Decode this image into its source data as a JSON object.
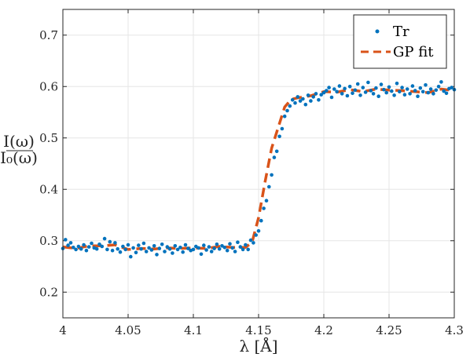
{
  "chart_data": {
    "type": "scatter",
    "title": "",
    "xlabel": "λ [Å]",
    "ylabel_numerator": "I(ω)",
    "ylabel_denominator": "I₀(ω)",
    "xlim": [
      4.0,
      4.3
    ],
    "ylim": [
      0.15,
      0.75
    ],
    "xticks": [
      4.0,
      4.05,
      4.1,
      4.15,
      4.2,
      4.25,
      4.3
    ],
    "xtick_labels": [
      "4",
      "4.05",
      "4.1",
      "4.15",
      "4.2",
      "4.25",
      "4.3"
    ],
    "yticks": [
      0.2,
      0.3,
      0.4,
      0.5,
      0.6,
      0.7
    ],
    "ytick_labels": [
      "0.2",
      "0.3",
      "0.4",
      "0.5",
      "0.6",
      "0.7"
    ],
    "grid": true,
    "legend_position": "top-right",
    "colors": {
      "data": "#0072BD",
      "fit": "#D95319"
    },
    "series": [
      {
        "name": "Tr",
        "style": "markers",
        "x": [
          4.0,
          4.002,
          4.004,
          4.006,
          4.008,
          4.01,
          4.012,
          4.014,
          4.016,
          4.018,
          4.02,
          4.022,
          4.024,
          4.026,
          4.028,
          4.03,
          4.032,
          4.034,
          4.036,
          4.038,
          4.04,
          4.042,
          4.044,
          4.046,
          4.048,
          4.05,
          4.052,
          4.054,
          4.056,
          4.058,
          4.06,
          4.062,
          4.064,
          4.066,
          4.068,
          4.07,
          4.072,
          4.074,
          4.076,
          4.078,
          4.08,
          4.082,
          4.084,
          4.086,
          4.088,
          4.09,
          4.092,
          4.094,
          4.096,
          4.098,
          4.1,
          4.102,
          4.104,
          4.106,
          4.108,
          4.11,
          4.112,
          4.114,
          4.116,
          4.118,
          4.12,
          4.122,
          4.124,
          4.126,
          4.128,
          4.13,
          4.132,
          4.134,
          4.136,
          4.138,
          4.14,
          4.142,
          4.144,
          4.146,
          4.148,
          4.15,
          4.152,
          4.154,
          4.156,
          4.158,
          4.16,
          4.162,
          4.164,
          4.166,
          4.168,
          4.17,
          4.172,
          4.174,
          4.176,
          4.178,
          4.18,
          4.182,
          4.184,
          4.186,
          4.188,
          4.19,
          4.192,
          4.194,
          4.196,
          4.198,
          4.2,
          4.202,
          4.204,
          4.206,
          4.208,
          4.21,
          4.212,
          4.214,
          4.216,
          4.218,
          4.22,
          4.222,
          4.224,
          4.226,
          4.228,
          4.23,
          4.232,
          4.234,
          4.236,
          4.238,
          4.24,
          4.242,
          4.244,
          4.246,
          4.248,
          4.25,
          4.252,
          4.254,
          4.256,
          4.258,
          4.26,
          4.262,
          4.264,
          4.266,
          4.268,
          4.27,
          4.272,
          4.274,
          4.276,
          4.278,
          4.28,
          4.282,
          4.284,
          4.286,
          4.288,
          4.29,
          4.292,
          4.294,
          4.296,
          4.298,
          4.3
        ],
        "y": [
          0.285,
          0.302,
          0.291,
          0.296,
          0.287,
          0.283,
          0.289,
          0.284,
          0.292,
          0.281,
          0.288,
          0.295,
          0.286,
          0.284,
          0.293,
          0.289,
          0.304,
          0.283,
          0.298,
          0.281,
          0.296,
          0.284,
          0.278,
          0.289,
          0.283,
          0.292,
          0.269,
          0.286,
          0.277,
          0.291,
          0.284,
          0.295,
          0.279,
          0.286,
          0.282,
          0.29,
          0.273,
          0.285,
          0.293,
          0.279,
          0.288,
          0.284,
          0.276,
          0.29,
          0.283,
          0.287,
          0.278,
          0.292,
          0.285,
          0.281,
          0.283,
          0.289,
          0.286,
          0.274,
          0.291,
          0.282,
          0.288,
          0.279,
          0.285,
          0.293,
          0.284,
          0.29,
          0.287,
          0.281,
          0.294,
          0.286,
          0.279,
          0.297,
          0.288,
          0.283,
          0.292,
          0.283,
          0.301,
          0.296,
          0.311,
          0.319,
          0.339,
          0.363,
          0.378,
          0.405,
          0.428,
          0.462,
          0.474,
          0.503,
          0.518,
          0.542,
          0.553,
          0.562,
          0.574,
          0.568,
          0.58,
          0.572,
          0.576,
          0.565,
          0.583,
          0.572,
          0.58,
          0.586,
          0.574,
          0.584,
          0.588,
          0.592,
          0.598,
          0.579,
          0.595,
          0.59,
          0.601,
          0.586,
          0.596,
          0.582,
          0.6,
          0.587,
          0.593,
          0.605,
          0.583,
          0.598,
          0.589,
          0.608,
          0.592,
          0.586,
          0.597,
          0.581,
          0.604,
          0.594,
          0.588,
          0.599,
          0.591,
          0.583,
          0.606,
          0.59,
          0.598,
          0.584,
          0.595,
          0.586,
          0.601,
          0.592,
          0.581,
          0.597,
          0.59,
          0.603,
          0.588,
          0.595,
          0.586,
          0.593,
          0.6,
          0.609,
          0.591,
          0.587,
          0.596,
          0.598,
          0.594
        ],
        "legend_label": "Tr"
      },
      {
        "name": "GP fit",
        "style": "dashed-line",
        "x": [
          4.0,
          4.01,
          4.02,
          4.03,
          4.04,
          4.05,
          4.06,
          4.07,
          4.08,
          4.09,
          4.1,
          4.11,
          4.12,
          4.13,
          4.14,
          4.145,
          4.15,
          4.155,
          4.16,
          4.165,
          4.17,
          4.175,
          4.18,
          4.19,
          4.2,
          4.21,
          4.22,
          4.23,
          4.24,
          4.25,
          4.26,
          4.27,
          4.28,
          4.29,
          4.3
        ],
        "y": [
          0.288,
          0.285,
          0.29,
          0.29,
          0.292,
          0.283,
          0.285,
          0.284,
          0.286,
          0.285,
          0.286,
          0.285,
          0.289,
          0.287,
          0.287,
          0.297,
          0.345,
          0.415,
          0.48,
          0.52,
          0.56,
          0.575,
          0.578,
          0.582,
          0.59,
          0.589,
          0.594,
          0.59,
          0.595,
          0.593,
          0.592,
          0.59,
          0.588,
          0.595,
          0.592
        ],
        "legend_label": "GP fit"
      }
    ]
  }
}
